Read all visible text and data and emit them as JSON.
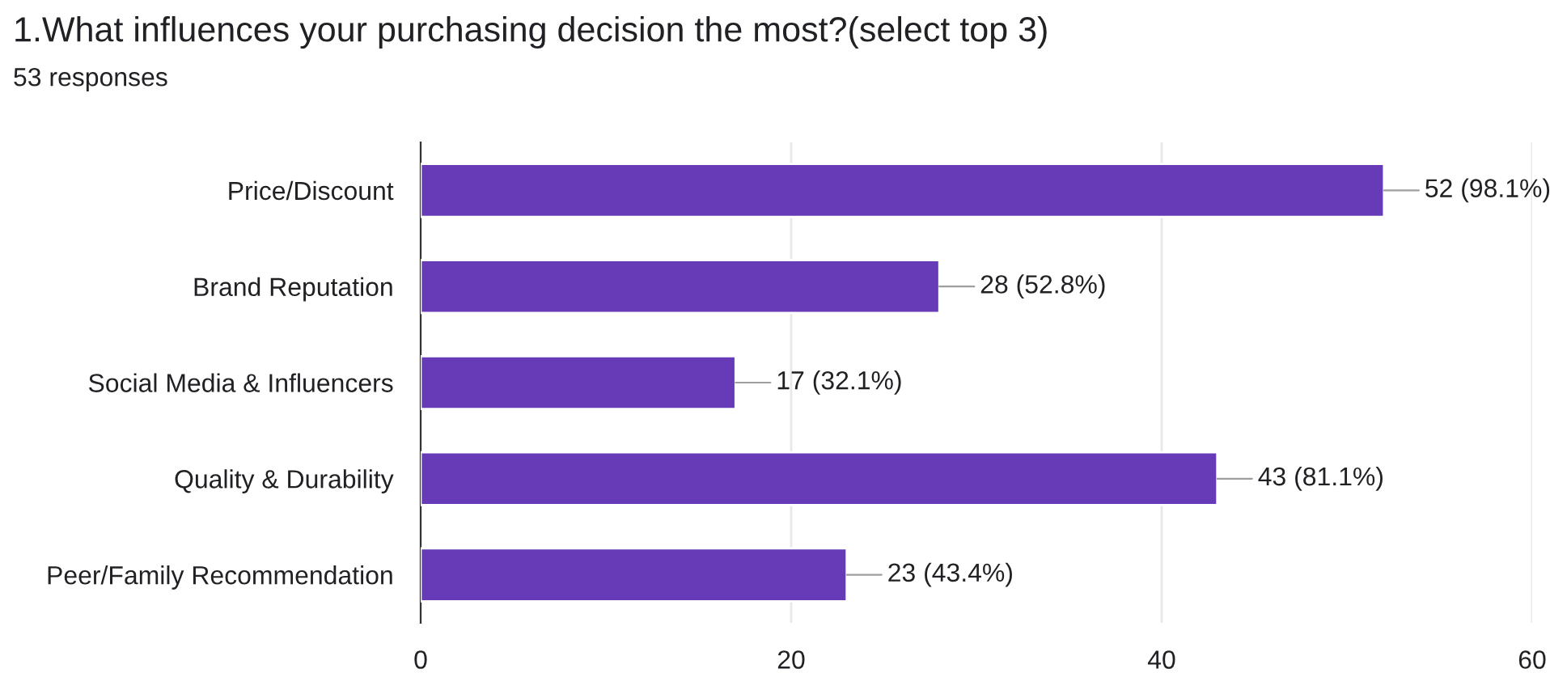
{
  "chart_data": {
    "type": "bar",
    "orientation": "horizontal",
    "title": "1.What influences your purchasing decision the most?(select top 3)",
    "subtitle": "53 responses",
    "categories": [
      "Price/Discount",
      "Brand Reputation",
      "Social Media & Influencers",
      "Quality & Durability",
      "Peer/Family Recommendation"
    ],
    "values": [
      52,
      28,
      17,
      43,
      23
    ],
    "color": "#673ab7",
    "value_labels": [
      "52 (98.1%)",
      "28 (52.8%)",
      "17 (32.1%)",
      "43 (81.1%)",
      "23 (43.4%)"
    ],
    "xlim": [
      0,
      60
    ],
    "xticks": [
      0,
      20,
      40,
      60
    ],
    "grid": "x"
  }
}
